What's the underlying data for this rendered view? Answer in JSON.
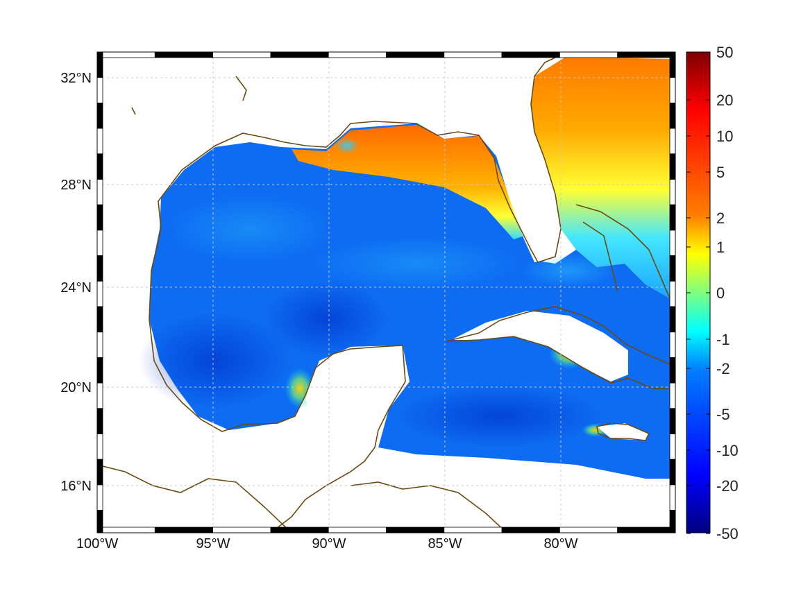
{
  "map": {
    "x_ticks": [
      "100°W",
      "95°W",
      "90°W",
      "85°W",
      "80°W"
    ],
    "y_ticks": [
      "32°N",
      "28°N",
      "24°N",
      "20°N",
      "16°N"
    ],
    "lon_values": [
      -100,
      -95,
      -90,
      -85,
      -80
    ],
    "lat_values": [
      32,
      28,
      24,
      20,
      16
    ],
    "lon_range": [
      -100,
      -75.1
    ],
    "lat_range": [
      14.3,
      33.0
    ],
    "grid": true,
    "coastline_color": "#6b4a12"
  },
  "colorbar": {
    "labels": [
      "50",
      "20",
      "10",
      "5",
      "2",
      "1",
      "0",
      "-1",
      "-2",
      "-5",
      "-10",
      "-20",
      "-50"
    ],
    "colormap": "jet",
    "top_color": "#7f0000",
    "bottom_color": "#00007f"
  }
}
